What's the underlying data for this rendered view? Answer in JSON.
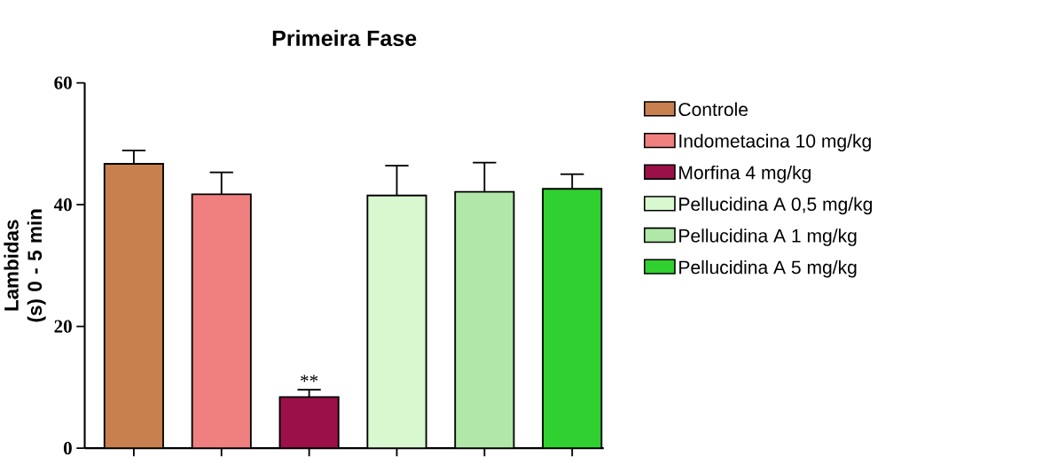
{
  "chart_data": {
    "type": "bar",
    "title": "Primeira Fase",
    "ylabel": "Lambidas (s) 0 - 5 min",
    "categories": [
      null,
      null,
      null,
      null,
      null,
      null
    ],
    "series": [
      {
        "name": "Controle",
        "color": "#c8804f",
        "values": [
          46.7,
          null,
          null,
          null,
          null,
          null
        ],
        "errors": [
          2.2,
          null,
          null,
          null,
          null,
          null
        ]
      },
      {
        "name": "Indometacina 10 mg/kg",
        "color": "#f08080",
        "values": [
          null,
          41.7,
          null,
          null,
          null,
          null
        ],
        "errors": [
          null,
          3.6,
          null,
          null,
          null,
          null
        ]
      },
      {
        "name": "Morfina 4 mg/kg",
        "color": "#9b1048",
        "values": [
          null,
          null,
          8.4,
          null,
          null,
          null
        ],
        "errors": [
          null,
          null,
          1.2,
          null,
          null,
          null
        ],
        "value_labels": [
          null,
          null,
          "**",
          null,
          null,
          null
        ]
      },
      {
        "name": "Pellucidina A 0,5 mg/kg",
        "color": "#d8f8d0",
        "values": [
          null,
          null,
          null,
          41.5,
          null,
          null
        ],
        "errors": [
          null,
          null,
          null,
          4.9,
          null,
          null
        ]
      },
      {
        "name": "Pellucidina A 1 mg/kg",
        "color": "#b0e8a8",
        "values": [
          null,
          null,
          null,
          null,
          42.1,
          null
        ],
        "errors": [
          null,
          null,
          null,
          null,
          4.8,
          null
        ]
      },
      {
        "name": "Pellucidina A 5 mg/kg",
        "color": "#30d030",
        "values": [
          null,
          null,
          null,
          null,
          null,
          42.6
        ],
        "errors": [
          null,
          null,
          null,
          null,
          null,
          2.4
        ]
      }
    ],
    "ylim": [
      0,
      60
    ],
    "yticks": [
      0,
      20,
      40,
      60
    ],
    "legend": "right",
    "grid": false
  }
}
